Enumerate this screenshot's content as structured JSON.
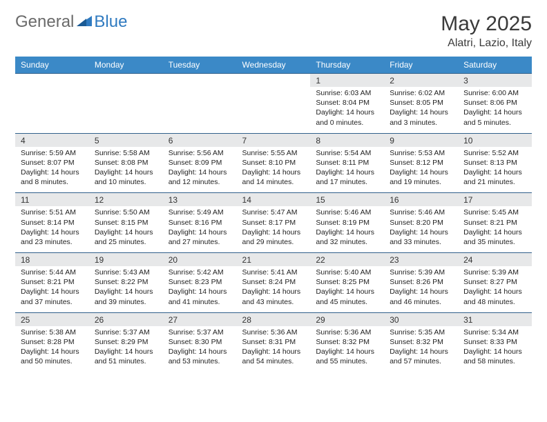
{
  "logo": {
    "general": "General",
    "blue": "Blue"
  },
  "title": "May 2025",
  "location": "Alatri, Lazio, Italy",
  "colors": {
    "header_bg": "#3b89c7",
    "header_text": "#ffffff",
    "daynum_bg": "#e7e8e9",
    "border": "#2f5f8a",
    "logo_gray": "#6a6a6a",
    "logo_blue": "#2f7ac0"
  },
  "day_headers": [
    "Sunday",
    "Monday",
    "Tuesday",
    "Wednesday",
    "Thursday",
    "Friday",
    "Saturday"
  ],
  "weeks": [
    {
      "nums": [
        "",
        "",
        "",
        "",
        "1",
        "2",
        "3"
      ],
      "cells": [
        "",
        "",
        "",
        "",
        "Sunrise: 6:03 AM\nSunset: 8:04 PM\nDaylight: 14 hours and 0 minutes.",
        "Sunrise: 6:02 AM\nSunset: 8:05 PM\nDaylight: 14 hours and 3 minutes.",
        "Sunrise: 6:00 AM\nSunset: 8:06 PM\nDaylight: 14 hours and 5 minutes."
      ]
    },
    {
      "nums": [
        "4",
        "5",
        "6",
        "7",
        "8",
        "9",
        "10"
      ],
      "cells": [
        "Sunrise: 5:59 AM\nSunset: 8:07 PM\nDaylight: 14 hours and 8 minutes.",
        "Sunrise: 5:58 AM\nSunset: 8:08 PM\nDaylight: 14 hours and 10 minutes.",
        "Sunrise: 5:56 AM\nSunset: 8:09 PM\nDaylight: 14 hours and 12 minutes.",
        "Sunrise: 5:55 AM\nSunset: 8:10 PM\nDaylight: 14 hours and 14 minutes.",
        "Sunrise: 5:54 AM\nSunset: 8:11 PM\nDaylight: 14 hours and 17 minutes.",
        "Sunrise: 5:53 AM\nSunset: 8:12 PM\nDaylight: 14 hours and 19 minutes.",
        "Sunrise: 5:52 AM\nSunset: 8:13 PM\nDaylight: 14 hours and 21 minutes."
      ]
    },
    {
      "nums": [
        "11",
        "12",
        "13",
        "14",
        "15",
        "16",
        "17"
      ],
      "cells": [
        "Sunrise: 5:51 AM\nSunset: 8:14 PM\nDaylight: 14 hours and 23 minutes.",
        "Sunrise: 5:50 AM\nSunset: 8:15 PM\nDaylight: 14 hours and 25 minutes.",
        "Sunrise: 5:49 AM\nSunset: 8:16 PM\nDaylight: 14 hours and 27 minutes.",
        "Sunrise: 5:47 AM\nSunset: 8:17 PM\nDaylight: 14 hours and 29 minutes.",
        "Sunrise: 5:46 AM\nSunset: 8:19 PM\nDaylight: 14 hours and 32 minutes.",
        "Sunrise: 5:46 AM\nSunset: 8:20 PM\nDaylight: 14 hours and 33 minutes.",
        "Sunrise: 5:45 AM\nSunset: 8:21 PM\nDaylight: 14 hours and 35 minutes."
      ]
    },
    {
      "nums": [
        "18",
        "19",
        "20",
        "21",
        "22",
        "23",
        "24"
      ],
      "cells": [
        "Sunrise: 5:44 AM\nSunset: 8:21 PM\nDaylight: 14 hours and 37 minutes.",
        "Sunrise: 5:43 AM\nSunset: 8:22 PM\nDaylight: 14 hours and 39 minutes.",
        "Sunrise: 5:42 AM\nSunset: 8:23 PM\nDaylight: 14 hours and 41 minutes.",
        "Sunrise: 5:41 AM\nSunset: 8:24 PM\nDaylight: 14 hours and 43 minutes.",
        "Sunrise: 5:40 AM\nSunset: 8:25 PM\nDaylight: 14 hours and 45 minutes.",
        "Sunrise: 5:39 AM\nSunset: 8:26 PM\nDaylight: 14 hours and 46 minutes.",
        "Sunrise: 5:39 AM\nSunset: 8:27 PM\nDaylight: 14 hours and 48 minutes."
      ]
    },
    {
      "nums": [
        "25",
        "26",
        "27",
        "28",
        "29",
        "30",
        "31"
      ],
      "cells": [
        "Sunrise: 5:38 AM\nSunset: 8:28 PM\nDaylight: 14 hours and 50 minutes.",
        "Sunrise: 5:37 AM\nSunset: 8:29 PM\nDaylight: 14 hours and 51 minutes.",
        "Sunrise: 5:37 AM\nSunset: 8:30 PM\nDaylight: 14 hours and 53 minutes.",
        "Sunrise: 5:36 AM\nSunset: 8:31 PM\nDaylight: 14 hours and 54 minutes.",
        "Sunrise: 5:36 AM\nSunset: 8:32 PM\nDaylight: 14 hours and 55 minutes.",
        "Sunrise: 5:35 AM\nSunset: 8:32 PM\nDaylight: 14 hours and 57 minutes.",
        "Sunrise: 5:34 AM\nSunset: 8:33 PM\nDaylight: 14 hours and 58 minutes."
      ]
    }
  ]
}
